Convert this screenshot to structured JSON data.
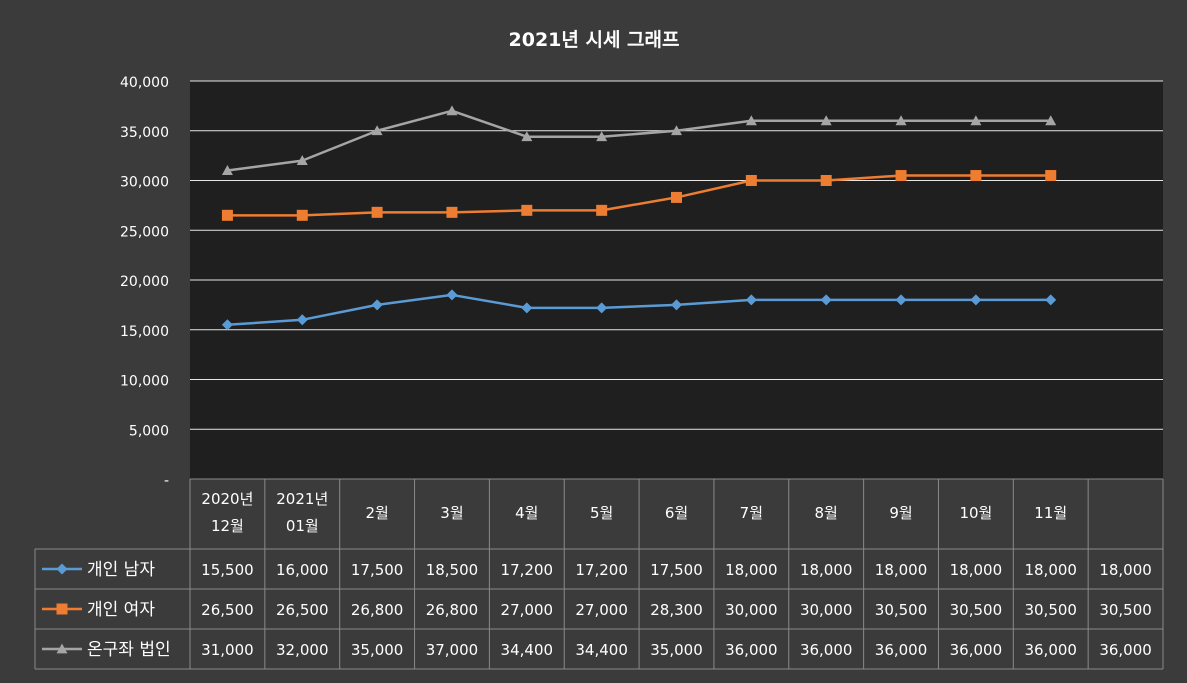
{
  "chart_data": {
    "type": "line",
    "title": "2021년 시세 그래프",
    "xlabel": "",
    "ylabel": "",
    "ylim": [
      0,
      40000
    ],
    "yticks": [
      "-",
      "5,000",
      "10,000",
      "15,000",
      "20,000",
      "25,000",
      "30,000",
      "35,000",
      "40,000"
    ],
    "grid": true,
    "legend": "data-table-left",
    "categories": [
      [
        "2020년",
        "12월"
      ],
      [
        "2021년",
        "01월"
      ],
      [
        "2월"
      ],
      [
        "3월"
      ],
      [
        "4월"
      ],
      [
        "5월"
      ],
      [
        "6월"
      ],
      [
        "7월"
      ],
      [
        "8월"
      ],
      [
        "9월"
      ],
      [
        "10월"
      ],
      [
        "11월"
      ],
      [
        ""
      ]
    ],
    "series": [
      {
        "name": "개인 남자",
        "color": "#5b9bd5",
        "marker": "diamond",
        "values": [
          15500,
          16000,
          17500,
          18500,
          17200,
          17200,
          17500,
          18000,
          18000,
          18000,
          18000,
          18000,
          18000
        ],
        "labels": [
          "15,500",
          "16,000",
          "17,500",
          "18,500",
          "17,200",
          "17,200",
          "17,500",
          "18,000",
          "18,000",
          "18,000",
          "18,000",
          "18,000",
          "18,000"
        ]
      },
      {
        "name": "개인 여자",
        "color": "#ed7d31",
        "marker": "square",
        "values": [
          26500,
          26500,
          26800,
          26800,
          27000,
          27000,
          28300,
          30000,
          30000,
          30500,
          30500,
          30500,
          30500
        ],
        "labels": [
          "26,500",
          "26,500",
          "26,800",
          "26,800",
          "27,000",
          "27,000",
          "28,300",
          "30,000",
          "30,000",
          "30,500",
          "30,500",
          "30,500",
          "30,500"
        ]
      },
      {
        "name": "온구좌 법인",
        "color": "#a5a5a5",
        "marker": "triangle",
        "values": [
          31000,
          32000,
          35000,
          37000,
          34400,
          34400,
          35000,
          36000,
          36000,
          36000,
          36000,
          36000,
          36000
        ],
        "labels": [
          "31,000",
          "32,000",
          "35,000",
          "37,000",
          "34,400",
          "34,400",
          "35,000",
          "36,000",
          "36,000",
          "36,000",
          "36,000",
          "36,000",
          "36,000"
        ]
      }
    ]
  }
}
